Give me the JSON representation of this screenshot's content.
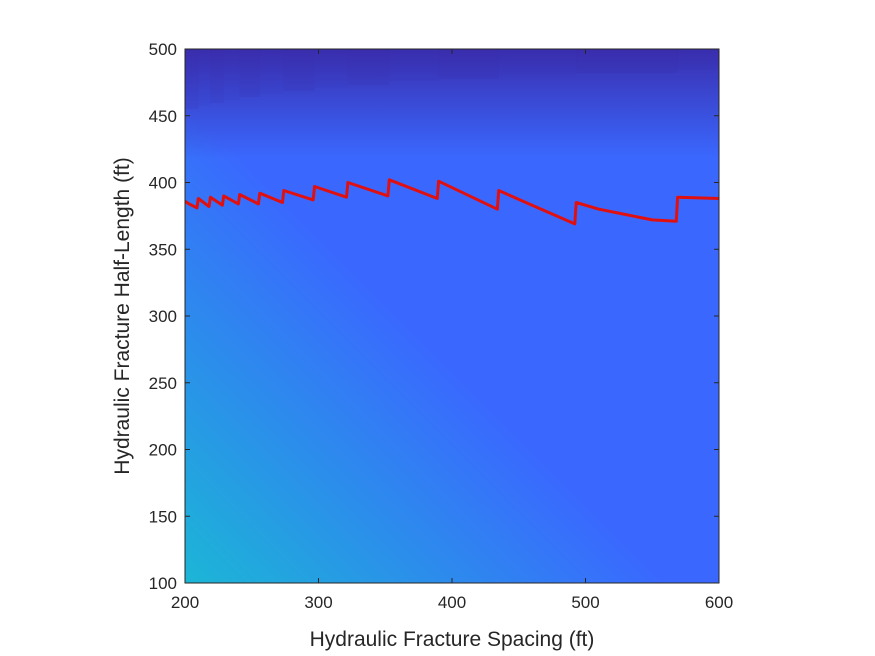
{
  "chart_data": {
    "type": "heatmap",
    "title": "",
    "xlabel": "Hydraulic Fracture Spacing (ft)",
    "ylabel": "Hydraulic Fracture Half-Length (ft)",
    "xlim": [
      200,
      600
    ],
    "ylim": [
      100,
      500
    ],
    "x_ticks": [
      200,
      300,
      400,
      500,
      600
    ],
    "y_ticks": [
      100,
      150,
      200,
      250,
      300,
      350,
      400,
      450,
      500
    ],
    "grid": false,
    "legend": "none",
    "colormap": {
      "low": "#1cb6d6",
      "mid": "#3a68ff",
      "high": "#3a24a0"
    },
    "series": [
      {
        "type": "line",
        "color": "#e01010",
        "x": [
          200,
          203,
          209,
          210,
          218,
          219,
          228,
          229,
          240,
          241,
          255,
          256,
          273,
          274,
          296,
          297,
          321,
          322,
          352,
          353,
          389,
          390,
          434,
          435,
          460,
          492,
          493,
          510,
          530,
          550,
          568,
          569,
          600
        ],
        "y": [
          386,
          384,
          381,
          388,
          382,
          389,
          383,
          390,
          384,
          391,
          384,
          392,
          385,
          394,
          387,
          397,
          389,
          400,
          390,
          402,
          388,
          401,
          380,
          394,
          383,
          369,
          385,
          380,
          376,
          372,
          371,
          389,
          388
        ]
      }
    ]
  }
}
